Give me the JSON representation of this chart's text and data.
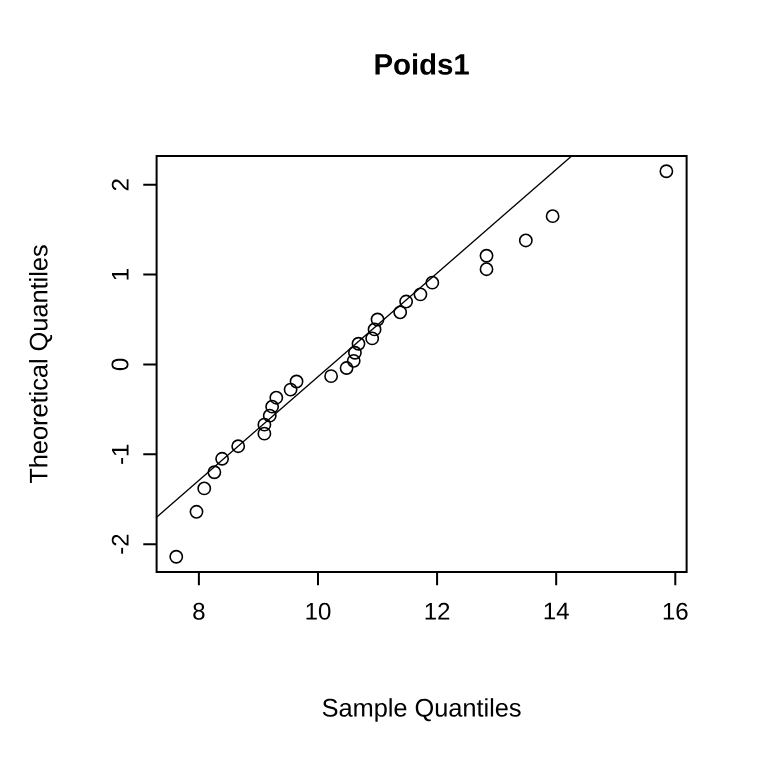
{
  "chart_data": {
    "type": "scatter",
    "title": "Poids1",
    "xlabel": "Sample Quantiles",
    "ylabel": "Theoretical Quantiles",
    "xlim": [
      7.29,
      16.19
    ],
    "ylim": [
      -2.31,
      2.32
    ],
    "xticks": [
      8,
      10,
      12,
      14,
      16
    ],
    "yticks": [
      -2,
      -1,
      0,
      1,
      2
    ],
    "grid": false,
    "series": [
      {
        "type": "scatter",
        "marker": "circle",
        "color": "#000000",
        "x": [
          7.62,
          7.96,
          8.09,
          8.26,
          8.39,
          8.66,
          9.1,
          9.1,
          9.19,
          9.23,
          9.3,
          9.54,
          9.64,
          10.22,
          10.48,
          10.6,
          10.62,
          10.68,
          10.91,
          10.95,
          11.0,
          11.38,
          11.48,
          11.72,
          11.92,
          12.83,
          12.83,
          13.49,
          13.94,
          15.85
        ],
        "values": [
          -2.14,
          -1.64,
          -1.38,
          -1.2,
          -1.05,
          -0.91,
          -0.77,
          -0.67,
          -0.57,
          -0.47,
          -0.37,
          -0.28,
          -0.19,
          -0.13,
          -0.04,
          0.04,
          0.13,
          0.23,
          0.29,
          0.39,
          0.5,
          0.58,
          0.7,
          0.78,
          0.91,
          1.06,
          1.21,
          1.38,
          1.65,
          2.15
        ]
      },
      {
        "type": "line",
        "marker": "none",
        "line_style": "solid",
        "color": "#000000",
        "x": [
          7.29,
          14.26
        ],
        "values": [
          -1.7,
          2.32
        ]
      }
    ]
  }
}
